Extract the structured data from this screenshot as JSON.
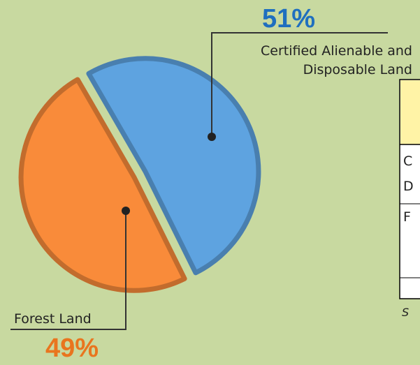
{
  "chart_data": {
    "type": "pie",
    "categories": [
      "Certified Alienable and Disposable Land",
      "Forest Land"
    ],
    "values": [
      51,
      49
    ],
    "value_labels": [
      "51%",
      "49%"
    ],
    "colors": [
      "#5ea3e0",
      "#f98b3a"
    ],
    "label_colors": [
      "#1f6fbf",
      "#e9751e"
    ]
  },
  "table": {
    "cells": [
      "C",
      "D",
      "F"
    ],
    "note": "S"
  }
}
